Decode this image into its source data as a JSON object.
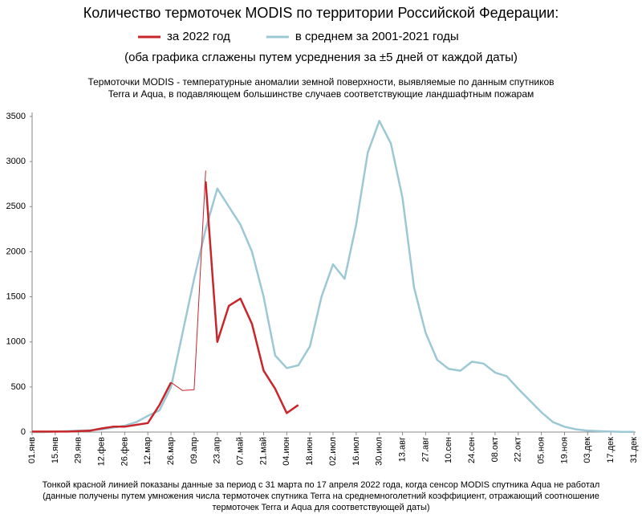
{
  "chart_data": {
    "type": "line",
    "title": "Количество термоточек MODIS по территории Российской Федерации:",
    "subtitle": "(оба графика сглажены путем усреднения за ±5 дней от каждой даты)",
    "description": [
      "Термоточки MODIS - температурные аномалии земной поверхности, выявляемые по данным спутников",
      "Terra и Aqua, в подавляющем большинстве случаев соответствующие ландшафтным пожарам"
    ],
    "footnote": [
      "Тонкой красной линией показаны данные за период с 31 марта по 17 апреля 2022 года, когда сенсор MODIS спутника Aqua не работал",
      "(данные получены путем умножения числа термоточек спутника Terra на среднемноголетний коэффициент, отражающий соотношение",
      "термоточек Terra и Aqua для соответствующей даты)"
    ],
    "categories": [
      "01.янв",
      null,
      "15.янв",
      null,
      "29.янв",
      null,
      "12.фев",
      null,
      "26.фев",
      null,
      "12.мар",
      null,
      "26.мар",
      null,
      "09.апр",
      null,
      "23.апр",
      null,
      "07.май",
      null,
      "21.май",
      null,
      "04.июн",
      null,
      "18.июн",
      null,
      "02.июл",
      null,
      "16.июл",
      null,
      "30.июл",
      null,
      "13.авг",
      null,
      "27.авг",
      null,
      "10.сен",
      null,
      "24.сен",
      null,
      "08.окт",
      null,
      "22.окт",
      null,
      "05.ноя",
      null,
      "19.ноя",
      null,
      "03.дек",
      null,
      "17.дек",
      null,
      "31.дек"
    ],
    "series": [
      {
        "name": "за 2022 год",
        "color": "#c8262b",
        "width": 2.5,
        "values": [
          5,
          5,
          5,
          5,
          10,
          15,
          40,
          60,
          60,
          80,
          100,
          300,
          550,
          null,
          null,
          2780,
          1000,
          1400,
          1480,
          1200,
          680,
          480,
          210,
          300,
          null,
          null,
          null,
          null,
          null,
          null,
          null,
          null,
          null,
          null,
          null,
          null,
          null,
          null,
          null,
          null,
          null,
          null,
          null,
          null,
          null,
          null,
          null,
          null,
          null,
          null,
          null,
          null,
          null
        ]
      },
      {
        "color": "#c8262b",
        "width": 1,
        "values": [
          null,
          null,
          null,
          null,
          null,
          null,
          null,
          null,
          null,
          null,
          null,
          null,
          550,
          460,
          470,
          2900,
          null,
          null,
          null,
          null,
          null,
          null,
          null,
          null,
          null,
          null,
          null,
          null,
          null,
          null,
          null,
          null,
          null,
          null,
          null,
          null,
          null,
          null,
          null,
          null,
          null,
          null,
          null,
          null,
          null,
          null,
          null,
          null,
          null,
          null,
          null,
          null,
          null
        ]
      },
      {
        "name": "в среднем за 2001-2021 годы",
        "color": "#9cc8d4",
        "width": 2.5,
        "values": [
          0,
          0,
          5,
          10,
          15,
          20,
          30,
          50,
          70,
          110,
          180,
          240,
          500,
          1100,
          1700,
          2250,
          2700,
          2500,
          2300,
          2000,
          1500,
          850,
          710,
          740,
          950,
          1500,
          1860,
          1700,
          2300,
          3100,
          3450,
          3200,
          2600,
          1600,
          1100,
          800,
          700,
          680,
          780,
          760,
          660,
          620,
          480,
          350,
          220,
          110,
          60,
          30,
          15,
          10,
          5,
          3,
          2
        ]
      }
    ],
    "ylim": [
      0,
      3500
    ],
    "yticks": [
      0,
      500,
      1000,
      1500,
      2000,
      2500,
      3000,
      3500
    ]
  }
}
